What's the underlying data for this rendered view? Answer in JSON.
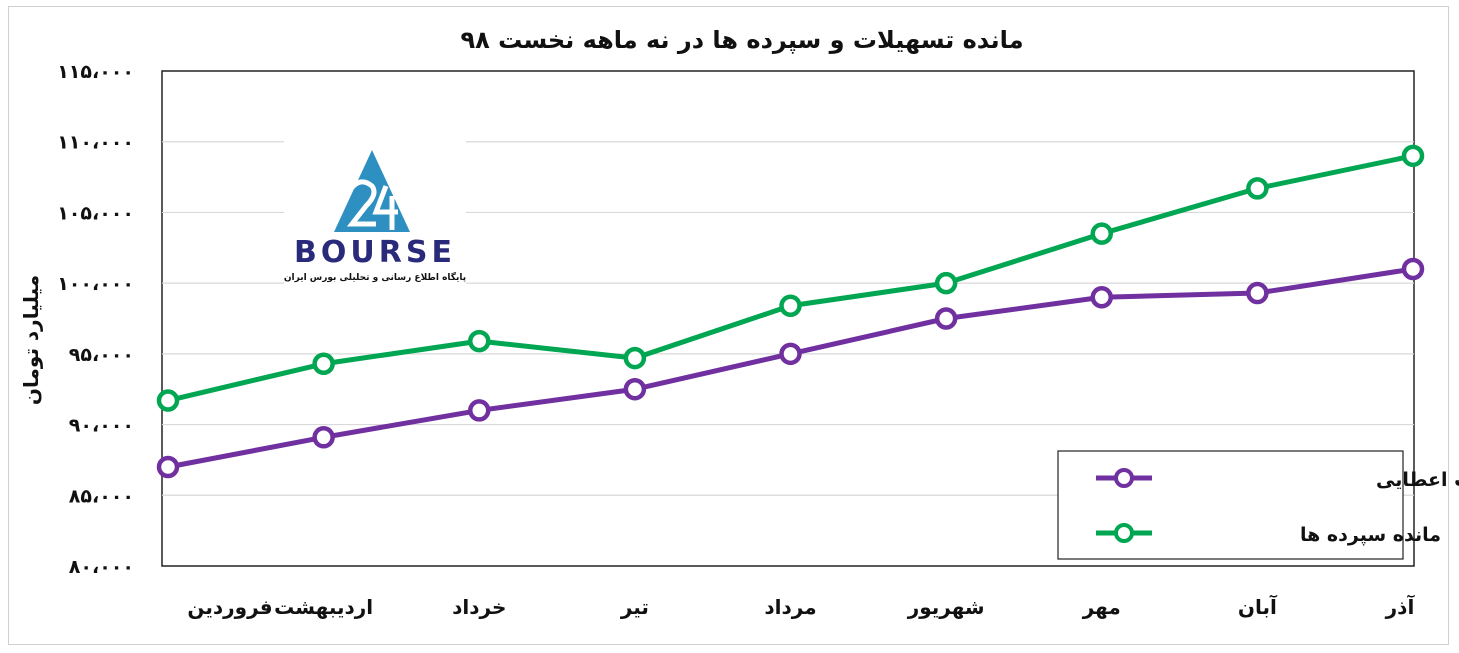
{
  "chart_data": {
    "type": "line",
    "title": "مانده تسهیلات و سپرده ها در نه ماهه نخست ۹۸",
    "ylabel": "میلیارد تومان",
    "xlabel": "",
    "categories": [
      "فروردین",
      "اردیبهشت",
      "خرداد",
      "تیر",
      "مرداد",
      "شهریور",
      "مهر",
      "آبان",
      "آذر"
    ],
    "ylim": [
      80000,
      115000
    ],
    "yticks": [
      80000,
      85000,
      90000,
      95000,
      100000,
      105000,
      110000,
      115000
    ],
    "ytick_labels": [
      "۸۰،۰۰۰",
      "۸۵،۰۰۰",
      "۹۰،۰۰۰",
      "۹۵،۰۰۰",
      "۱۰۰،۰۰۰",
      "۱۰۵،۰۰۰",
      "۱۱۰،۰۰۰",
      "۱۱۵،۰۰۰"
    ],
    "grid": true,
    "legend_position": "bottom-right",
    "series": [
      {
        "name": "مانده تسهیلات اعطایی",
        "color": "#7030a0",
        "values": [
          87000,
          89100,
          91000,
          92500,
          95000,
          97500,
          99000,
          99300,
          101000
        ]
      },
      {
        "name": "مانده سپرده ها",
        "color": "#00a651",
        "values": [
          91700,
          94300,
          95900,
          94700,
          98400,
          100000,
          103500,
          106700,
          109000
        ]
      }
    ]
  },
  "logo": {
    "mark": "24",
    "word": "BOURSE",
    "subtitle": "پایگاه اطلاع رسانی و تحلیلی بورس ایران",
    "color": "#2e8fc1"
  }
}
